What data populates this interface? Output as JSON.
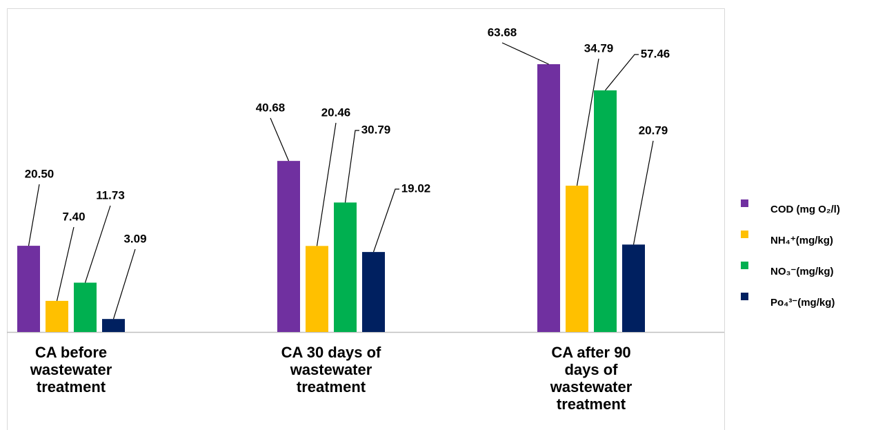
{
  "chart_data": {
    "type": "bar",
    "categories": [
      "CA before wastewater treatment",
      "CA 30 days of wastewater treatment",
      "CA after 90 days of wastewater treatment"
    ],
    "series": [
      {
        "name": "COD (mg O₂/l)",
        "color": "#7030a0",
        "values": [
          20.5,
          40.68,
          63.68
        ],
        "value_labels": [
          "20.50",
          "40.68",
          "63.68"
        ]
      },
      {
        "name": "NH₄⁺(mg/kg)",
        "color": "#ffc000",
        "values": [
          7.4,
          20.46,
          34.79
        ],
        "value_labels": [
          "7.40",
          "20.46",
          "34.79"
        ]
      },
      {
        "name": "NO₃⁻(mg/kg)",
        "color": "#00b050",
        "values": [
          11.73,
          30.79,
          57.46
        ]
      },
      {
        "name": "Po₄³⁻(mg/kg)",
        "color": "#002060",
        "values": [
          3.09,
          19.02,
          20.79
        ]
      }
    ]
  }
}
